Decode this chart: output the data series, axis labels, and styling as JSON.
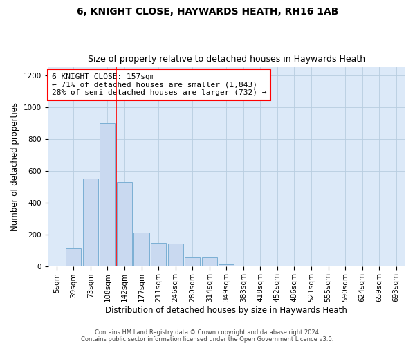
{
  "title1": "6, KNIGHT CLOSE, HAYWARDS HEATH, RH16 1AB",
  "title2": "Size of property relative to detached houses in Haywards Heath",
  "xlabel": "Distribution of detached houses by size in Haywards Heath",
  "ylabel": "Number of detached properties",
  "annotation_line1": "6 KNIGHT CLOSE: 157sqm",
  "annotation_line2": "← 71% of detached houses are smaller (1,843)",
  "annotation_line3": "28% of semi-detached houses are larger (732) →",
  "footer1": "Contains HM Land Registry data © Crown copyright and database right 2024.",
  "footer2": "Contains public sector information licensed under the Open Government Licence v3.0.",
  "categories": [
    "5sqm",
    "39sqm",
    "73sqm",
    "108sqm",
    "142sqm",
    "177sqm",
    "211sqm",
    "246sqm",
    "280sqm",
    "314sqm",
    "349sqm",
    "383sqm",
    "418sqm",
    "452sqm",
    "486sqm",
    "521sqm",
    "555sqm",
    "590sqm",
    "624sqm",
    "659sqm",
    "693sqm"
  ],
  "values": [
    0,
    110,
    550,
    900,
    530,
    210,
    145,
    140,
    55,
    55,
    10,
    0,
    0,
    0,
    0,
    0,
    0,
    0,
    0,
    0,
    0
  ],
  "bar_color": "#c9d9f0",
  "bar_edge_color": "#7bafd4",
  "vline_color": "red",
  "vline_pos": 3.5,
  "ylim": [
    0,
    1250
  ],
  "yticks": [
    0,
    200,
    400,
    600,
    800,
    1000,
    1200
  ],
  "bg_color": "#dce9f8",
  "title1_fontsize": 10,
  "title2_fontsize": 9,
  "axis_label_fontsize": 8.5,
  "tick_fontsize": 7.5,
  "annotation_fontsize": 8
}
